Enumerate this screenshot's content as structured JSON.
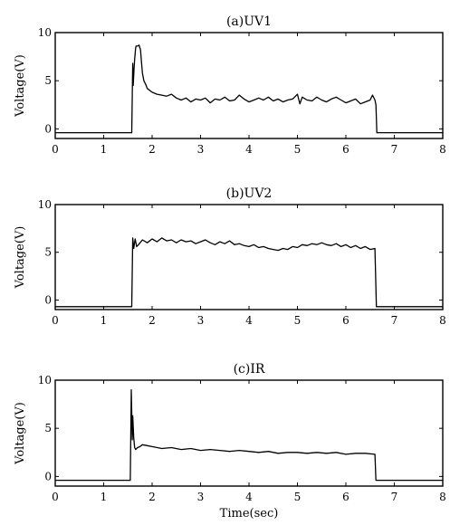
{
  "chart_data": [
    {
      "type": "line",
      "title": "(a)UV1",
      "xlabel": "",
      "ylabel": "Voltage(V)",
      "xlim": [
        0,
        8
      ],
      "ylim": [
        -1,
        10
      ],
      "xticks": [
        0,
        1,
        2,
        3,
        4,
        5,
        6,
        7,
        8
      ],
      "yticks": [
        0,
        5,
        10
      ],
      "grid": false,
      "series": [
        {
          "x": [
            0,
            1.58,
            1.6,
            1.61,
            1.63,
            1.64,
            1.66,
            1.67,
            1.7,
            1.73,
            1.76,
            1.78,
            1.8,
            1.83,
            1.87,
            1.9,
            2.0,
            2.1,
            2.2,
            2.3,
            2.4,
            2.5,
            2.6,
            2.7,
            2.8,
            2.9,
            3.0,
            3.1,
            3.2,
            3.3,
            3.4,
            3.5,
            3.6,
            3.7,
            3.8,
            3.9,
            4.0,
            4.1,
            4.2,
            4.3,
            4.4,
            4.5,
            4.6,
            4.7,
            4.8,
            4.9,
            5.0,
            5.05,
            5.1,
            5.2,
            5.3,
            5.4,
            5.5,
            5.6,
            5.7,
            5.8,
            5.9,
            6.0,
            6.1,
            6.2,
            6.3,
            6.4,
            6.5,
            6.55,
            6.6,
            6.62,
            6.64,
            6.7,
            8
          ],
          "y": [
            -0.4,
            -0.4,
            6.8,
            4.5,
            6.5,
            7.2,
            8.4,
            8.6,
            8.6,
            8.7,
            8.2,
            7.0,
            5.8,
            5.0,
            4.6,
            4.2,
            3.8,
            3.6,
            3.5,
            3.4,
            3.6,
            3.2,
            3.0,
            3.2,
            2.8,
            3.1,
            3.0,
            3.2,
            2.7,
            3.1,
            3.0,
            3.3,
            2.9,
            3.0,
            3.5,
            3.1,
            2.8,
            3.0,
            3.2,
            3.0,
            3.3,
            2.9,
            3.1,
            2.8,
            3.0,
            3.1,
            3.6,
            2.6,
            3.3,
            3.0,
            2.9,
            3.3,
            3.0,
            2.8,
            3.1,
            3.3,
            3.0,
            2.7,
            2.9,
            3.1,
            2.6,
            2.8,
            3.0,
            3.5,
            3.0,
            2.5,
            -0.4,
            -0.4,
            -0.4
          ]
        }
      ]
    },
    {
      "type": "line",
      "title": "(b)UV2",
      "xlabel": "",
      "ylabel": "Voltage(V)",
      "xlim": [
        0,
        8
      ],
      "ylim": [
        -1,
        10
      ],
      "xticks": [
        0,
        1,
        2,
        3,
        4,
        5,
        6,
        7,
        8
      ],
      "yticks": [
        0,
        5,
        10
      ],
      "grid": false,
      "series": [
        {
          "x": [
            0,
            1.58,
            1.6,
            1.62,
            1.65,
            1.68,
            1.72,
            1.8,
            1.9,
            2.0,
            2.1,
            2.2,
            2.3,
            2.4,
            2.5,
            2.6,
            2.7,
            2.8,
            2.9,
            3.0,
            3.1,
            3.2,
            3.3,
            3.4,
            3.5,
            3.6,
            3.7,
            3.8,
            3.9,
            4.0,
            4.1,
            4.2,
            4.3,
            4.4,
            4.5,
            4.6,
            4.7,
            4.8,
            4.9,
            5.0,
            5.1,
            5.2,
            5.3,
            5.4,
            5.5,
            5.6,
            5.7,
            5.8,
            5.9,
            6.0,
            6.1,
            6.2,
            6.3,
            6.4,
            6.5,
            6.6,
            6.63,
            6.66,
            8
          ],
          "y": [
            -0.7,
            -0.7,
            6.5,
            5.4,
            6.4,
            5.6,
            5.8,
            6.3,
            6.0,
            6.4,
            6.1,
            6.5,
            6.2,
            6.3,
            6.0,
            6.3,
            6.1,
            6.2,
            5.9,
            6.1,
            6.3,
            6.0,
            5.8,
            6.1,
            5.9,
            6.2,
            5.8,
            5.9,
            5.7,
            5.6,
            5.8,
            5.5,
            5.6,
            5.4,
            5.3,
            5.2,
            5.4,
            5.3,
            5.6,
            5.5,
            5.8,
            5.7,
            5.9,
            5.8,
            6.0,
            5.8,
            5.7,
            5.9,
            5.6,
            5.8,
            5.5,
            5.7,
            5.4,
            5.6,
            5.3,
            5.4,
            -0.7,
            -0.7,
            -0.7
          ]
        }
      ]
    },
    {
      "type": "line",
      "title": "(c)IR",
      "xlabel": "Time(sec)",
      "ylabel": "Voltage(V)",
      "xlim": [
        0,
        8
      ],
      "ylim": [
        -1,
        10
      ],
      "xticks": [
        0,
        1,
        2,
        3,
        4,
        5,
        6,
        7,
        8
      ],
      "yticks": [
        0,
        5,
        10
      ],
      "grid": false,
      "series": [
        {
          "x": [
            0,
            1.55,
            1.57,
            1.59,
            1.6,
            1.62,
            1.64,
            1.66,
            1.7,
            1.75,
            1.8,
            1.9,
            2.0,
            2.2,
            2.4,
            2.6,
            2.8,
            3.0,
            3.2,
            3.4,
            3.6,
            3.8,
            4.0,
            4.2,
            4.4,
            4.6,
            4.8,
            5.0,
            5.2,
            5.4,
            5.6,
            5.8,
            6.0,
            6.2,
            6.4,
            6.6,
            6.62,
            6.65,
            8
          ],
          "y": [
            -0.4,
            -0.4,
            9.0,
            3.8,
            6.3,
            4.0,
            3.0,
            2.8,
            3.0,
            3.1,
            3.3,
            3.2,
            3.1,
            2.9,
            3.0,
            2.8,
            2.9,
            2.7,
            2.8,
            2.7,
            2.6,
            2.7,
            2.6,
            2.5,
            2.6,
            2.4,
            2.5,
            2.5,
            2.4,
            2.5,
            2.4,
            2.5,
            2.3,
            2.4,
            2.4,
            2.3,
            -0.4,
            -0.4,
            -0.4
          ]
        }
      ]
    }
  ]
}
